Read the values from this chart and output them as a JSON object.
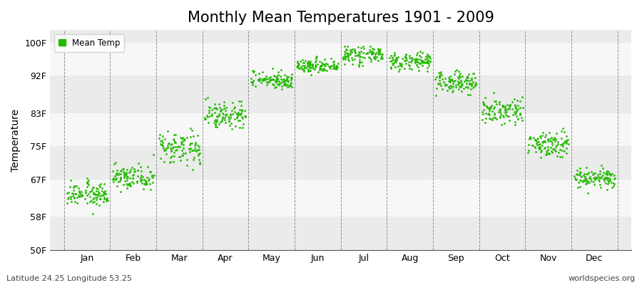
{
  "title": "Monthly Mean Temperatures 1901 - 2009",
  "ylabel": "Temperature",
  "ylabel_bottom": "Latitude 24.25 Longitude 53.25",
  "watermark": "worldspecies.org",
  "ytick_labels": [
    "50F",
    "58F",
    "67F",
    "75F",
    "83F",
    "92F",
    "100F"
  ],
  "ytick_values": [
    50,
    58,
    67,
    75,
    83,
    92,
    100
  ],
  "months": [
    "Jan",
    "Feb",
    "Mar",
    "Apr",
    "May",
    "Jun",
    "Jul",
    "Aug",
    "Sep",
    "Oct",
    "Nov",
    "Dec"
  ],
  "dot_color": "#22bb00",
  "background_color": "#ffffff",
  "band_colors": [
    "#ebebeb",
    "#f7f7f7"
  ],
  "legend_label": "Mean Temp",
  "monthly_mean_temps": [
    63.5,
    67.5,
    74.5,
    82.5,
    91.0,
    94.5,
    97.0,
    95.5,
    90.5,
    83.5,
    75.5,
    67.5
  ],
  "monthly_trend": [
    3.0,
    3.5,
    5.0,
    3.5,
    2.0,
    2.0,
    2.0,
    2.0,
    2.5,
    3.5,
    3.5,
    2.5
  ],
  "monthly_spread": [
    2.5,
    2.0,
    3.0,
    2.5,
    1.5,
    1.5,
    1.5,
    1.5,
    2.0,
    2.5,
    2.5,
    2.0
  ],
  "n_years": 109,
  "title_fontsize": 15,
  "axis_fontsize": 10,
  "tick_fontsize": 9,
  "dot_size": 4
}
